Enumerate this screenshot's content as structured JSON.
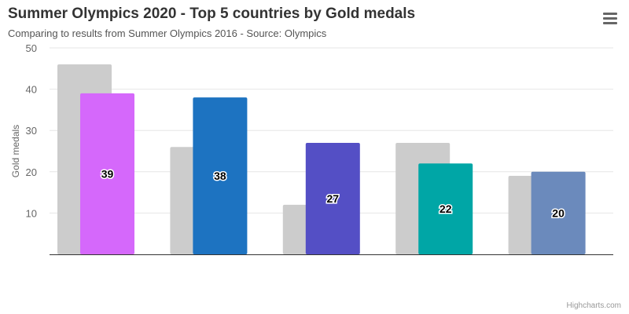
{
  "menu": {
    "icon": "hamburger-menu-icon"
  },
  "credits": "Highcharts.com",
  "chart_data": {
    "type": "bar",
    "title": "Summer Olympics 2020 - Top 5 countries by Gold medals",
    "subtitle": "Comparing to results from Summer Olympics 2016 - Source: Olympics",
    "ylabel": "Gold medals",
    "ylim": [
      0,
      50
    ],
    "yticks": [
      10,
      20,
      30,
      40,
      50
    ],
    "grid": true,
    "legend": "none",
    "series": [
      {
        "values": [
          46,
          26,
          12,
          27,
          19
        ],
        "color": "#cccccc",
        "data_labels": false
      },
      {
        "values": [
          39,
          38,
          27,
          22,
          20
        ],
        "colors": [
          "#d568fb",
          "#1d73c1",
          "#544fc5",
          "#00a6a6",
          "#6b8abc"
        ],
        "data_labels": true
      }
    ]
  }
}
